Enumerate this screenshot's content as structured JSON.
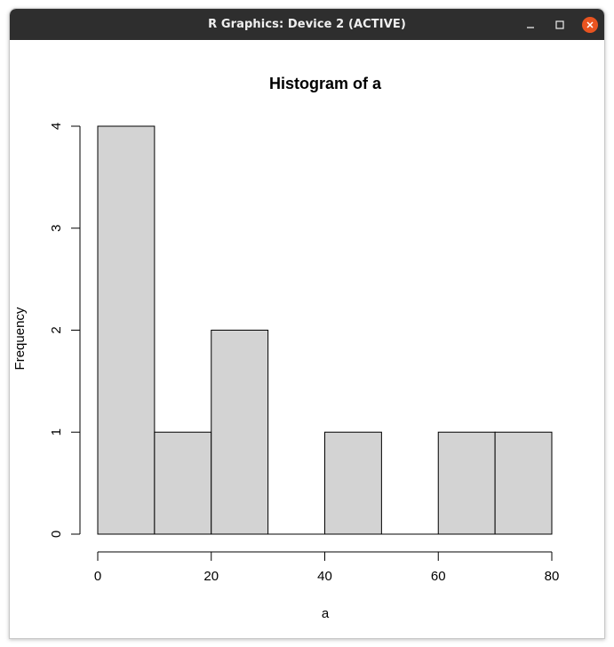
{
  "window": {
    "title": "R Graphics: Device 2 (ACTIVE)",
    "controls": {
      "minimize_icon": "minimize-icon",
      "maximize_icon": "maximize-icon",
      "close_icon": "close-icon",
      "close_color": "#e95420"
    }
  },
  "chart_data": {
    "type": "bar",
    "title": "Histogram of a",
    "xlabel": "a",
    "ylabel": "Frequency",
    "bins": [
      [
        0,
        10
      ],
      [
        10,
        20
      ],
      [
        20,
        30
      ],
      [
        30,
        40
      ],
      [
        40,
        50
      ],
      [
        50,
        60
      ],
      [
        60,
        70
      ],
      [
        70,
        80
      ]
    ],
    "values": [
      4,
      1,
      2,
      0,
      1,
      0,
      1,
      1
    ],
    "xlim": [
      0,
      80
    ],
    "ylim": [
      0,
      4
    ],
    "x_ticks": [
      0,
      20,
      40,
      60,
      80
    ],
    "y_ticks": [
      0,
      1,
      2,
      3,
      4
    ],
    "bar_fill": "#d3d3d3",
    "bar_stroke": "#000000",
    "grid": false
  }
}
